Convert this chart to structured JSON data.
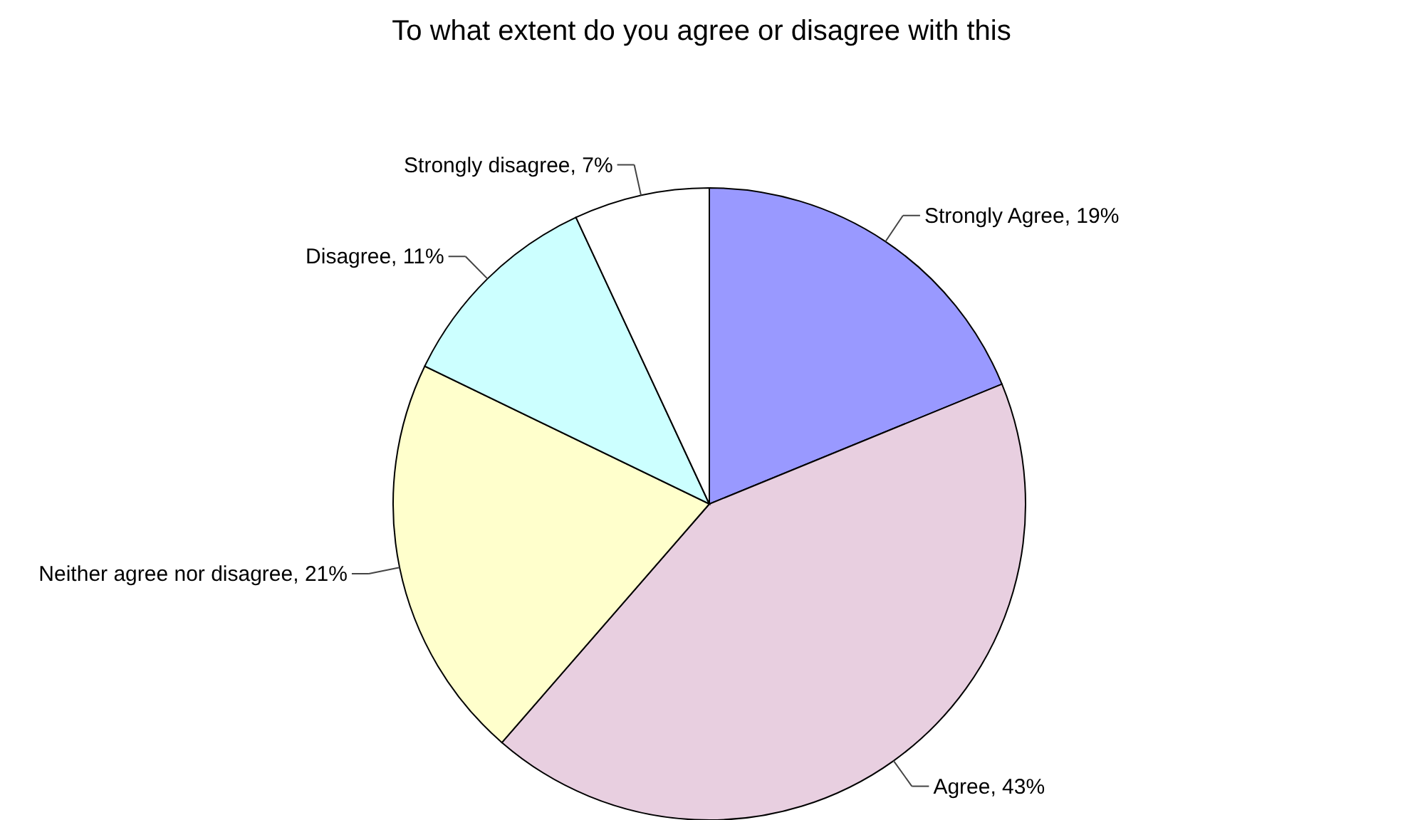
{
  "chart_data": {
    "type": "pie",
    "title": "To what extent do you agree or disagree with this",
    "categories": [
      "Strongly Agree",
      "Agree",
      "Neither agree nor disagree",
      "Disagree",
      "Strongly disagree"
    ],
    "values": [
      19,
      43,
      21,
      11,
      7
    ],
    "value_labels": [
      "19%",
      "43%",
      "21%",
      "11%",
      "7%"
    ],
    "colors": [
      "#9999ff",
      "#e8cfe0",
      "#ffffcc",
      "#ccffff",
      "#ffffff"
    ]
  }
}
